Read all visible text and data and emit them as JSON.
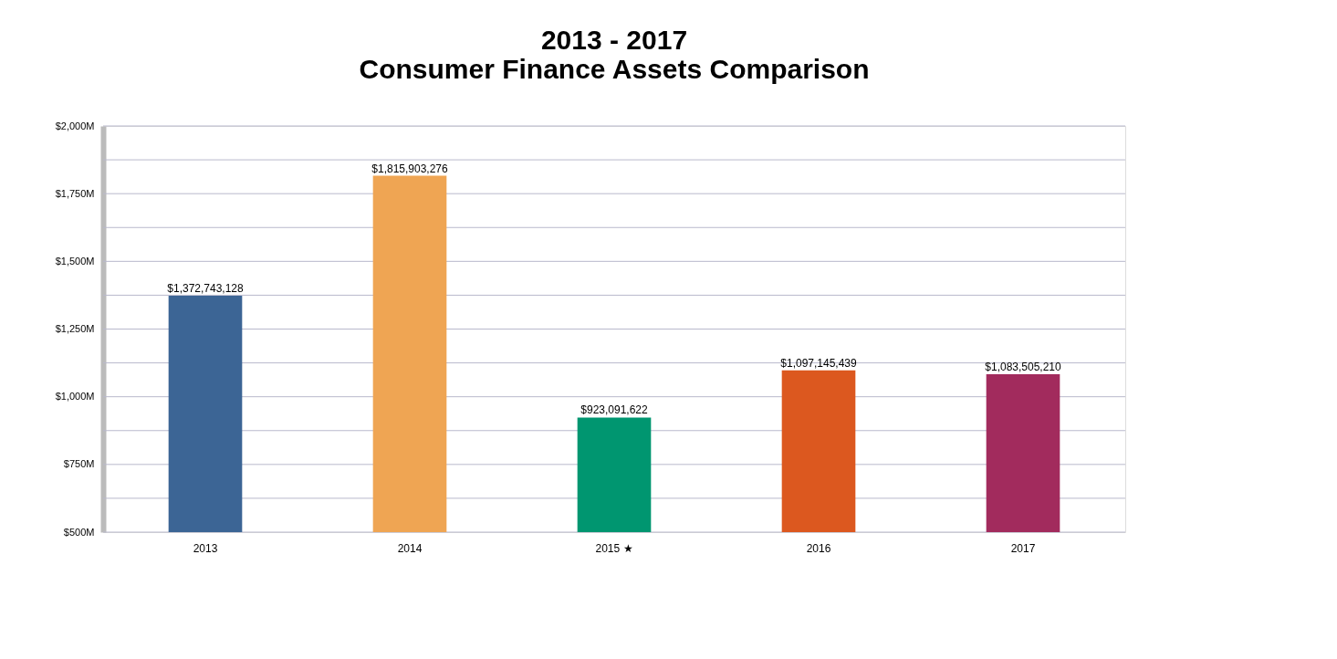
{
  "chart_data": {
    "type": "bar",
    "title": "2013 - 2017\nConsumer Finance Assets Comparison",
    "categories": [
      "2013",
      "2014",
      "2015 ★",
      "2016",
      "2017"
    ],
    "values": [
      1372743128,
      1815903276,
      923091622,
      1097145439,
      1083505210
    ],
    "colors": [
      "#3c6595",
      "#efa553",
      "#009670",
      "#dc581f",
      "#a22b5d"
    ],
    "value_labels": [
      "$1,372,743,128",
      "$1,815,903,276",
      "$923,091,622",
      "$1,097,145,439",
      "$1,083,505,210"
    ],
    "ylim": [
      500000000,
      2000000000
    ],
    "yticks": [
      {
        "value": 500000000,
        "label": "$500M"
      },
      {
        "value": 625000000,
        "label": null
      },
      {
        "value": 750000000,
        "label": "$750M"
      },
      {
        "value": 875000000,
        "label": null
      },
      {
        "value": 1000000000,
        "label": "$1,000M"
      },
      {
        "value": 1125000000,
        "label": null
      },
      {
        "value": 1250000000,
        "label": "$1,250M"
      },
      {
        "value": 1375000000,
        "label": null
      },
      {
        "value": 1500000000,
        "label": "$1,500M"
      },
      {
        "value": 1625000000,
        "label": null
      },
      {
        "value": 1750000000,
        "label": "$1,750M"
      },
      {
        "value": 1875000000,
        "label": null
      },
      {
        "value": 2000000000,
        "label": "$2,000M"
      }
    ],
    "grid": "y"
  }
}
